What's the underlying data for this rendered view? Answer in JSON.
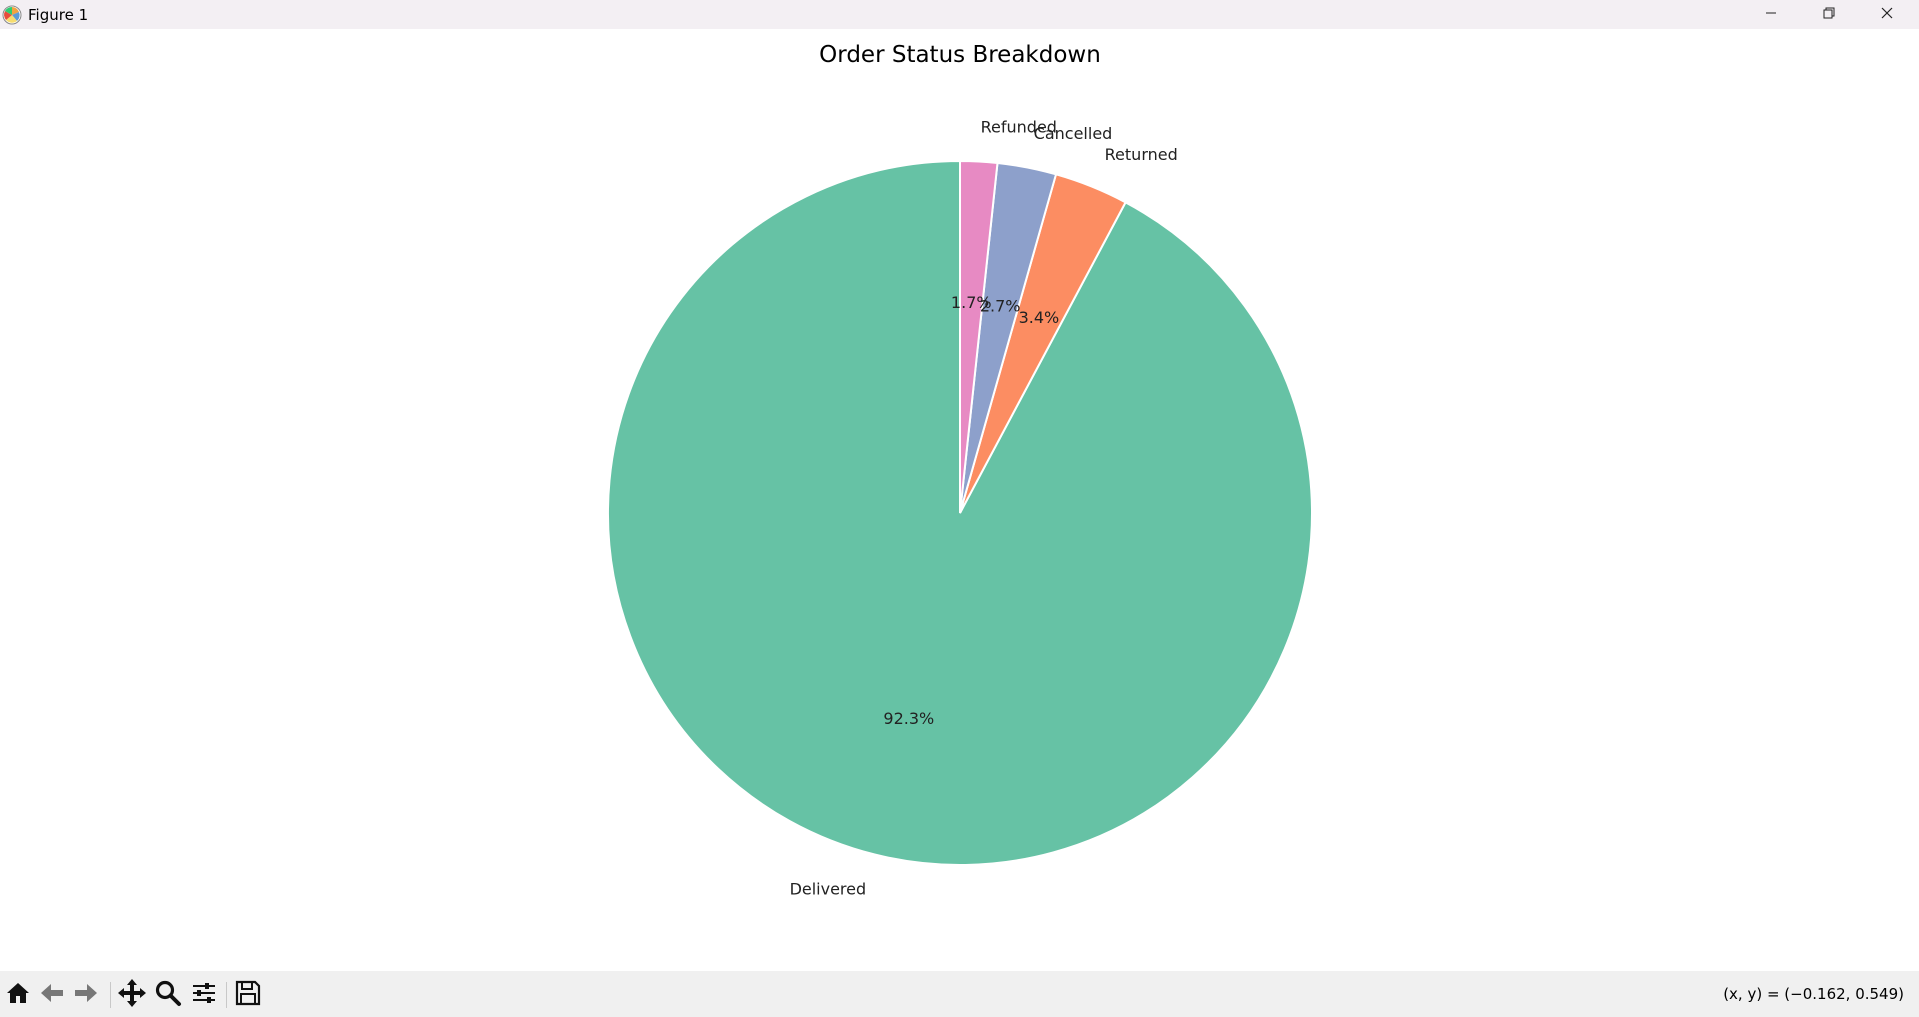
{
  "window": {
    "title": "Figure 1",
    "minimize_icon": "minimize-icon",
    "maximize_icon": "restore-icon",
    "close_icon": "close-icon"
  },
  "toolbar": {
    "tools": [
      {
        "name": "home",
        "icon": "home-icon"
      },
      {
        "name": "back",
        "icon": "arrow-left-icon"
      },
      {
        "name": "forward",
        "icon": "arrow-right-icon"
      },
      {
        "name": "pan",
        "icon": "move-icon"
      },
      {
        "name": "zoom",
        "icon": "magnifier-icon"
      },
      {
        "name": "configure",
        "icon": "sliders-icon"
      },
      {
        "name": "save",
        "icon": "floppy-disk-icon"
      }
    ],
    "coordinates": "(x, y) = (−0.162, 0.549)"
  },
  "chart_data": {
    "type": "pie",
    "title": "Order Status Breakdown",
    "start_angle_deg": 90,
    "direction": "counterclockwise",
    "slices": [
      {
        "label": "Delivered",
        "value": 92.3,
        "pct_label": "92.3%",
        "color": "#66c2a5"
      },
      {
        "label": "Returned",
        "value": 3.4,
        "pct_label": "3.4%",
        "color": "#fc8d62"
      },
      {
        "label": "Cancelled",
        "value": 2.7,
        "pct_label": "2.7%",
        "color": "#8da0cb"
      },
      {
        "label": "Refunded",
        "value": 1.7,
        "pct_label": "1.7%",
        "color": "#e78ac3"
      }
    ],
    "wedge_edge_color": "#ffffff"
  }
}
